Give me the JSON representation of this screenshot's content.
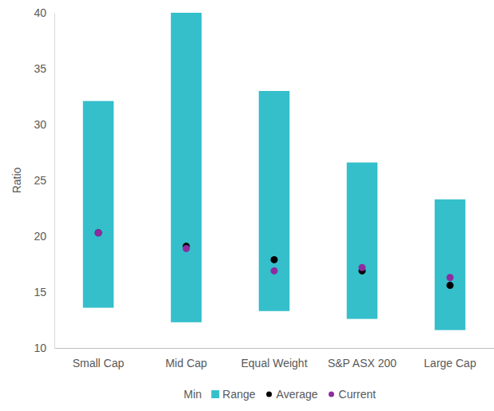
{
  "chart_data": {
    "type": "bar",
    "stacked": true,
    "y_label": "Ratio",
    "categories": [
      "Small Cap",
      "Mid Cap",
      "Equal Weight",
      "S&P ASX 200",
      "Large Cap"
    ],
    "series": [
      {
        "name": "Min",
        "type": "bar",
        "color": "#ffffff",
        "values": [
          13.6,
          12.3,
          13.3,
          12.6,
          11.6
        ]
      },
      {
        "name": "Range",
        "type": "bar",
        "color": "#35bfcb",
        "values": [
          18.5,
          27.7,
          19.7,
          14.0,
          11.7
        ]
      },
      {
        "name": "Average",
        "type": "scatter",
        "marker": "circle",
        "color": "#000000",
        "values": [
          20.3,
          19.1,
          17.9,
          16.9,
          15.6
        ]
      },
      {
        "name": "Current",
        "type": "scatter",
        "marker": "circle",
        "color": "#8e2c9e",
        "values": [
          20.3,
          18.9,
          16.9,
          17.2,
          16.3
        ]
      }
    ],
    "ylim": [
      10,
      40
    ],
    "yticks": [
      10,
      15,
      20,
      25,
      30,
      35,
      40
    ],
    "grid": false,
    "legend": "bottom"
  }
}
